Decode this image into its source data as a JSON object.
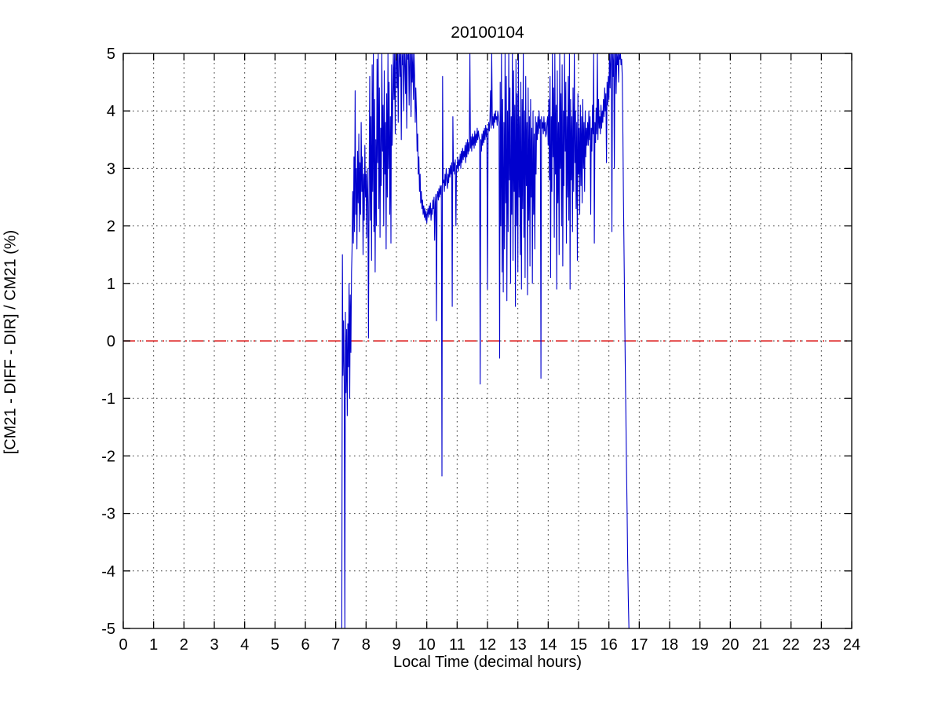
{
  "chart_data": {
    "type": "line",
    "title": "20100104",
    "xlabel": "Local Time (decimal hours)",
    "ylabel": "[CM21 - DIFF - DIR] / CM21 (%)",
    "xlim": [
      0,
      24
    ],
    "ylim": [
      -5,
      5
    ],
    "xtick_step": 1,
    "ytick_step": 1,
    "grid": "dotted",
    "legend": "none",
    "colors": {
      "series": "#0000cd",
      "zero_line": "#dd2222",
      "axis": "#000000",
      "grid": "#3a3a3a",
      "background": "#ffffff"
    },
    "zero_reference": 0,
    "series": [
      {
        "name": "[CM21 - DIFF - DIR] / CM21",
        "color": "#0000cd",
        "style": "solid",
        "segments": [
          {
            "x0": 7.2,
            "dx": 0.02,
            "y": [
              -5,
              1.5,
              -0.6,
              0.35,
              -0.75,
              -5,
              0.5,
              -0.9,
              0.2,
              -1.3,
              0.3,
              -0.45,
              1.0,
              -1.0,
              0.8,
              -0.2,
              1.2,
              1.6
            ]
          },
          {
            "x0": 7.56,
            "dx": 0.02,
            "y": [
              2.6,
              1.7,
              3.2,
              1.9,
              4.35,
              2.2,
              3.0,
              1.6,
              3.3,
              2.4,
              3.6,
              1.9,
              3.1,
              2.2,
              3.8,
              2.6,
              3.2,
              1.5,
              2.9,
              2.1,
              3.4,
              2.5,
              2.9,
              1.8,
              3.0,
              2.4,
              0.05
            ]
          },
          {
            "x0": 8.1,
            "dx": 0.02,
            "y": [
              2.8,
              4.6,
              2.1,
              3.9,
              1.4,
              4.8,
              2.6,
              5,
              1.9,
              4.2,
              1.2,
              3.5,
              2.0,
              4.9,
              3.1,
              5,
              2.3,
              4.4,
              1.8,
              3.7,
              2.7,
              5,
              3.3,
              4.1,
              2.0,
              4.7,
              2.9,
              3.8,
              1.6,
              4.3,
              2.5,
              5,
              3.0,
              4.5,
              2.2,
              3.9,
              1.7,
              4.8,
              3.4,
              4.2
            ]
          },
          {
            "x0": 8.9,
            "dx": 0.02,
            "y": [
              5,
              4.2,
              5,
              3.6,
              5,
              5,
              4.4,
              5,
              3.8,
              5,
              5,
              4.6,
              5,
              3.5,
              5,
              4.8,
              5,
              4.0,
              5,
              5,
              4.3,
              5,
              3.7,
              5,
              4.9,
              5,
              4.1,
              5,
              5,
              3.9,
              5,
              4.5,
              5,
              4.2,
              5,
              4.6,
              3.8,
              4.4
            ]
          },
          {
            "x0": 9.66,
            "dx": 0.02,
            "y": [
              4.0,
              3.3,
              3.6,
              2.9,
              3.2,
              2.6,
              2.9,
              2.4,
              2.6,
              2.3,
              2.45,
              2.2,
              2.35,
              2.15,
              2.3,
              2.1,
              2.25,
              2.05
            ]
          },
          {
            "x0": 10.02,
            "dx": 0.02,
            "y": [
              2.2,
              2.3,
              2.15,
              2.35,
              2.2,
              2.4,
              2.1,
              2.3,
              2.2,
              2.45,
              2.3,
              2.5,
              1.75,
              2.4,
              2.55,
              0.35,
              2.5,
              2.6,
              2.45,
              2.65,
              2.5,
              2.7,
              2.55,
              2.7
            ]
          },
          {
            "x0": 10.5,
            "dx": 0.02,
            "y": [
              -2.35,
              4.6,
              2.75
            ]
          },
          {
            "x0": 10.56,
            "dx": 0.02,
            "y": [
              2.8,
              2.6,
              2.9,
              2.7,
              3.0,
              2.8,
              2.65,
              2.9,
              2.75,
              3.0,
              2.85,
              3.05,
              2.9,
              3.1,
              0.6,
              3.9,
              2.95,
              3.1,
              2.9,
              3.15,
              2.0,
              3.05
            ]
          },
          {
            "x0": 11.0,
            "dx": 0.02,
            "y": [
              3.0,
              3.2,
              2.95,
              3.15,
              3.05,
              3.25,
              3.0,
              3.3,
              3.1,
              3.35,
              3.15,
              3.3,
              3.2,
              3.4,
              3.1,
              3.45,
              3.2,
              3.5,
              3.25,
              3.45,
              3.3,
              5,
              3.35,
              3.55,
              3.3,
              3.6,
              3.4,
              3.55,
              3.35,
              3.65,
              3.4,
              3.6,
              3.45,
              3.7,
              3.5,
              3.65,
              3.55,
              3.5
            ]
          },
          {
            "x0": 11.76,
            "dx": 0.02,
            "y": [
              -0.75,
              3.5,
              3.3,
              3.6,
              3.4,
              3.65,
              3.45,
              3.7,
              3.5,
              3.75,
              3.55,
              3.7,
              0.9,
              3.6,
              3.8,
              3.65,
              3.85,
              4.35,
              3.7,
              5,
              3.75,
              3.9,
              3.7,
              3.95,
              3.8,
              4.0,
              3.85,
              3.9,
              3.75,
              4.0,
              3.9,
              3.8,
              -0.3
            ]
          },
          {
            "x0": 12.42,
            "dx": 0.02,
            "y": [
              4.5,
              2.0,
              5,
              1.2,
              4.2,
              0.85,
              3.8,
              1.6,
              5,
              2.4,
              4.6,
              0.7,
              4.0,
              1.9,
              5,
              2.8,
              4.4,
              1.0,
              3.9,
              2.2,
              5,
              1.4,
              4.7,
              2.6,
              4.1,
              0.6,
              4.9,
              2.0,
              4.3,
              1.2,
              5,
              2.5,
              3.9,
              1.5,
              4.5,
              0.9,
              4.2,
              2.3
            ]
          },
          {
            "x0": 13.18,
            "dx": 0.02,
            "y": [
              5,
              1.8,
              4.0,
              1.1,
              4.6,
              2.7,
              3.8,
              0.8,
              4.4,
              2.1,
              3.9,
              1.3,
              4.2,
              2.5,
              3.7,
              1.0,
              4.0,
              2.2,
              3.6,
              1.6,
              3.9,
              2.9
            ]
          },
          {
            "x0": 13.62,
            "dx": 0.02,
            "y": [
              3.8,
              3.5,
              3.9,
              3.6,
              4.0,
              3.7,
              3.85,
              -0.65,
              3.9,
              3.7,
              3.8,
              3.6,
              3.9,
              3.65,
              3.8,
              3.55,
              3.6,
              3.8
            ]
          },
          {
            "x0": 13.98,
            "dx": 0.02,
            "y": [
              3.9,
              3.4,
              4.2,
              2.8,
              4.6,
              1.1,
              3.9,
              2.6,
              5,
              3.2,
              4.4,
              1.8,
              5,
              2.9,
              4.1,
              0.9,
              4.7,
              2.4,
              3.8,
              1.5,
              5,
              3.0,
              4.3,
              2.0,
              4.8,
              1.3,
              4.0,
              2.7,
              5,
              3.3,
              4.5,
              1.7,
              3.9,
              2.5
            ]
          },
          {
            "x0": 14.66,
            "dx": 0.02,
            "y": [
              4.6,
              2.1,
              5,
              0.9,
              4.2,
              2.8,
              3.9,
              1.9,
              4.4,
              2.6,
              5,
              3.1,
              4.0,
              2.3,
              3.8,
              1.4,
              4.3,
              2.9,
              3.7,
              2.2,
              4.1,
              2.7,
              3.9,
              2.4,
              4.2,
              3.0,
              3.8,
              2.6,
              4.0,
              3.2,
              3.7,
              3.4
            ]
          },
          {
            "x0": 15.3,
            "dx": 0.02,
            "y": [
              3.8,
              3.4,
              4.0,
              3.5,
              3.9,
              2.2,
              3.7,
              3.3,
              4.1,
              3.6,
              5,
              1.7,
              3.8,
              3.45,
              4.05,
              3.6,
              5,
              3.5,
              4.2,
              3.7
            ]
          },
          {
            "x0": 15.7,
            "dx": 0.02,
            "y": [
              3.9,
              3.6,
              4.1,
              3.7,
              4.0,
              3.8,
              4.2,
              3.9,
              4.4,
              4.0,
              4.3,
              3.1,
              4.5,
              4.1,
              4.6,
              4.2
            ]
          },
          {
            "x0": 16.02,
            "dx": 0.02,
            "y": [
              5,
              4.4,
              5,
              5,
              1.9,
              5,
              4.6,
              5,
              3.0,
              5,
              5,
              4.3,
              5,
              4.8
            ]
          },
          {
            "x0": 16.3,
            "dx": 0.02,
            "y": [
              5,
              4.5,
              5,
              4.9,
              5,
              4.8,
              4.9
            ]
          },
          {
            "x0": 16.44,
            "dx": 0.02,
            "y": [
              4.6,
              3.6,
              2.5,
              1.5,
              0.5,
              -0.4,
              -1.3,
              -2.2,
              -3.0,
              -3.8,
              -4.5,
              -5
            ]
          }
        ]
      }
    ]
  }
}
